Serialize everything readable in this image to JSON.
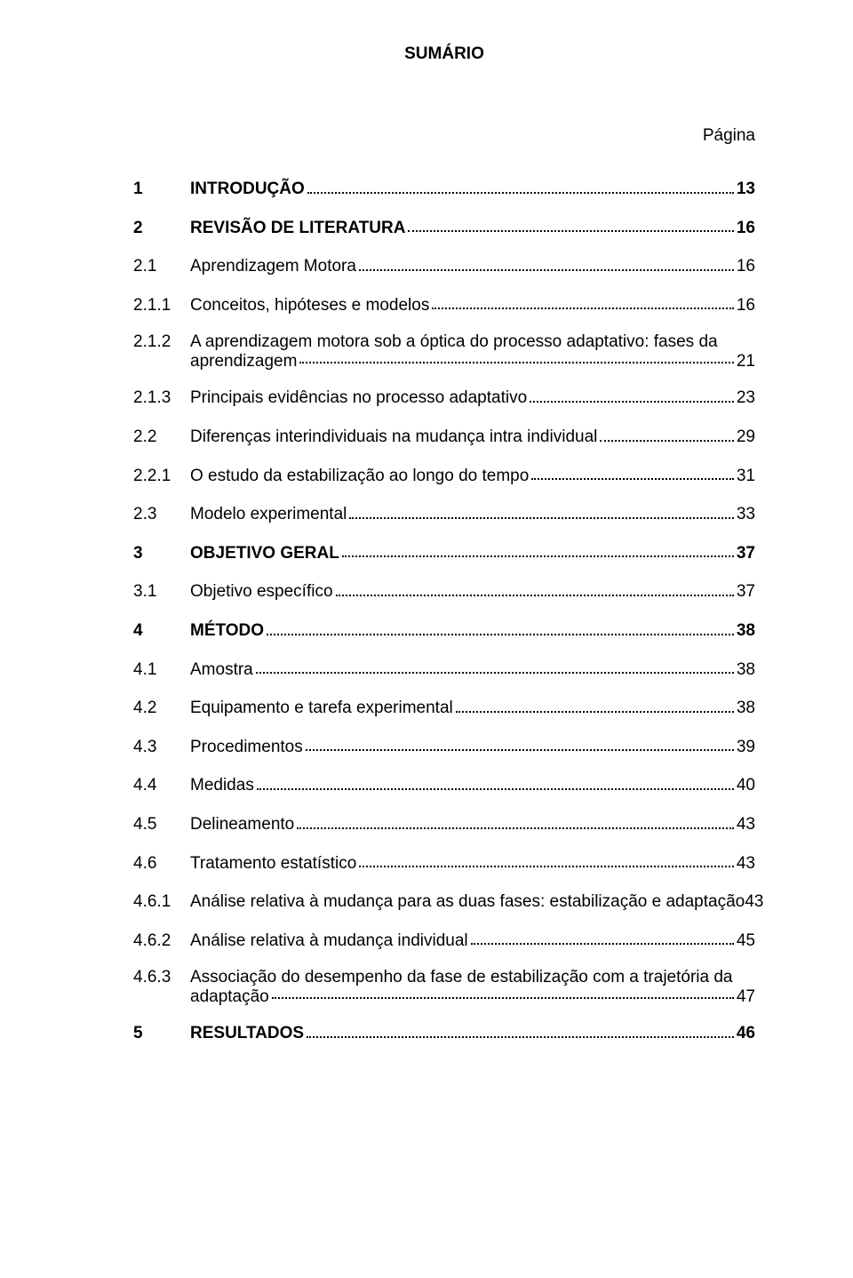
{
  "title": "SUMÁRIO",
  "page_label": "Página",
  "colors": {
    "background": "#ffffff",
    "text": "#000000",
    "dots": "#000000"
  },
  "typography": {
    "font_family": "Arial",
    "body_fontsize_pt": 14,
    "title_fontsize_pt": 14,
    "title_weight": "bold"
  },
  "entries": [
    {
      "num": "1",
      "text": "INTRODUÇÃO",
      "page": "13",
      "bold": true
    },
    {
      "num": "2",
      "text": "REVISÃO DE LITERATURA",
      "page": "16",
      "bold": true
    },
    {
      "num": "2.1",
      "text": "Aprendizagem Motora",
      "page": "16"
    },
    {
      "num": "2.1.1",
      "text": "Conceitos, hipóteses e modelos",
      "page": "16"
    },
    {
      "num": "2.1.2",
      "text": "A aprendizagem motora sob a óptica do processo adaptativo: fases da",
      "text2": "aprendizagem",
      "page": "21",
      "multiline": true
    },
    {
      "num": "2.1.3",
      "text": "Principais evidências no processo adaptativo",
      "page": "23"
    },
    {
      "num": "2.2",
      "text": "Diferenças interindividuais na mudança intra individual",
      "page": "29"
    },
    {
      "num": "2.2.1",
      "text": "O estudo da estabilização ao longo do tempo",
      "page": "31"
    },
    {
      "num": "2.3",
      "text": "Modelo experimental",
      "page": "33"
    },
    {
      "num": "3",
      "text": "OBJETIVO GERAL",
      "page": "37",
      "bold": true
    },
    {
      "num": "3.1",
      "text": "Objetivo específico",
      "page": "37"
    },
    {
      "num": "4",
      "text": "MÉTODO",
      "page": "38",
      "bold": true
    },
    {
      "num": "4.1",
      "text": "Amostra",
      "page": "38"
    },
    {
      "num": "4.2",
      "text": "Equipamento e tarefa experimental",
      "page": "38"
    },
    {
      "num": "4.3",
      "text": "Procedimentos",
      "page": "39"
    },
    {
      "num": "4.4",
      "text": "Medidas",
      "page": "40"
    },
    {
      "num": "4.5",
      "text": "Delineamento",
      "page": "43"
    },
    {
      "num": "4.6",
      "text": "Tratamento estatístico",
      "page": "43"
    },
    {
      "num": "4.6.1",
      "text": "Análise relativa à mudança para as duas fases: estabilização e adaptação",
      "page": "43",
      "tight": true
    },
    {
      "num": "4.6.2",
      "text": "Análise relativa à mudança individual",
      "page": "45"
    },
    {
      "num": "4.6.3",
      "text": "Associação do desempenho da fase de estabilização com a trajetória da",
      "text2": "adaptação",
      "page": "47",
      "multiline": true
    },
    {
      "num": "5",
      "text": "RESULTADOS",
      "page": "46",
      "bold": true
    }
  ]
}
